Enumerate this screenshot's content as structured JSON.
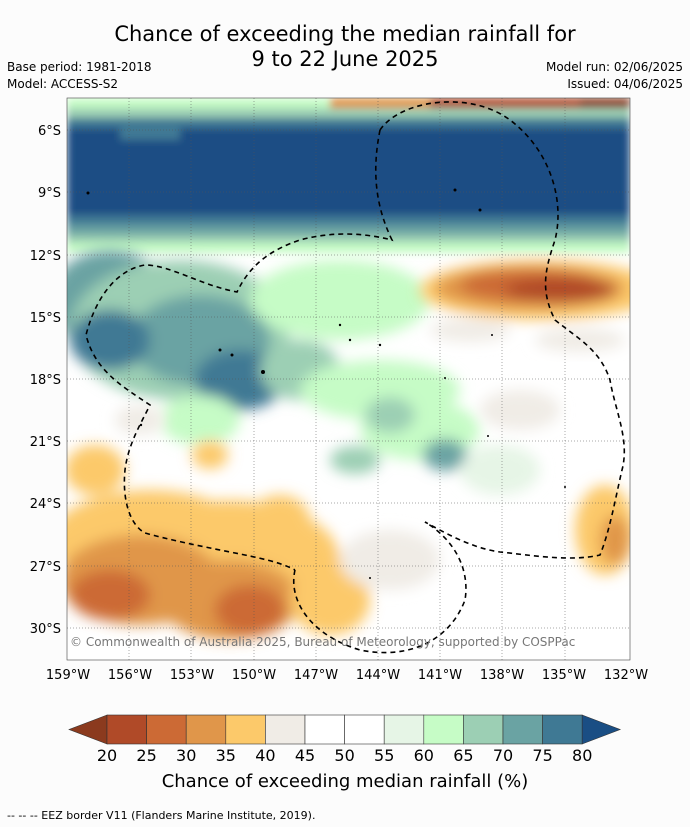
{
  "title_line1": "Chance of exceeding the median rainfall for",
  "title_line2": "9 to 22 June 2025",
  "meta_left": {
    "line1": "Base period: 1981-2018",
    "line2": "Model: ACCESS-S2"
  },
  "meta_right": {
    "line1": "Model run: 02/06/2025",
    "line2": "Issued: 04/06/2025"
  },
  "map": {
    "lat_labels": [
      "6°S",
      "9°S",
      "12°S",
      "15°S",
      "18°S",
      "21°S",
      "24°S",
      "27°S",
      "30°S"
    ],
    "lon_labels": [
      "159°W",
      "156°W",
      "153°W",
      "150°W",
      "147°W",
      "144°W",
      "141°W",
      "138°W",
      "135°W",
      "132°W"
    ],
    "copyright": "© Commonwealth of Australia 2025, Bureau of Meteorology, supported by COSPPac"
  },
  "colorbar": {
    "ticks": [
      "20",
      "25",
      "30",
      "35",
      "40",
      "45",
      "50",
      "55",
      "60",
      "65",
      "70",
      "75",
      "80"
    ],
    "colors": [
      "#8b3a1e",
      "#b04a28",
      "#cc6a35",
      "#e0964a",
      "#fcc96a",
      "#f0ece6",
      "#ffffff",
      "#ffffff",
      "#e6f5e6",
      "#c6fcc6",
      "#9ccfb4",
      "#6aa3a3",
      "#3f7994",
      "#1a4e84"
    ],
    "label": "Chance of exceeding median rainfall (%)"
  },
  "footer": "--  --  -- EEZ border V11 (Flanders Marine Institute, 2019)."
}
